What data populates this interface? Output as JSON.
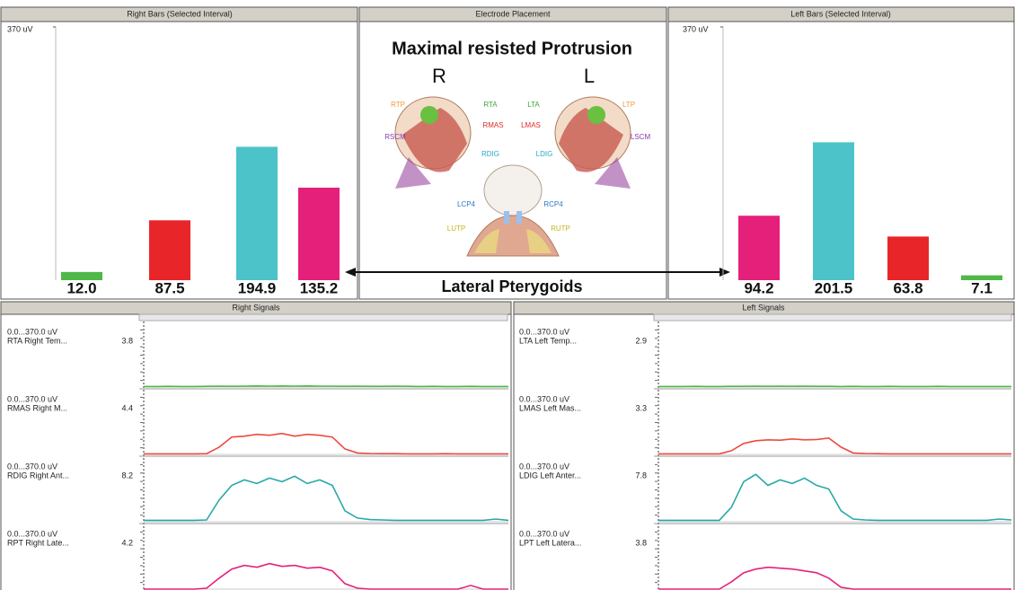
{
  "right_bars": {
    "type": "bar",
    "title": "Right Bars (Selected Interval)",
    "values": [
      12.0,
      87.5,
      194.9,
      135.2
    ],
    "value_labels": [
      "12.0",
      "87.5",
      "194.9",
      "135.2"
    ],
    "colors": [
      "#4fb848",
      "#e8262a",
      "#4cc3c8",
      "#e5207a"
    ],
    "ylim": [
      0,
      370
    ],
    "yticks": [
      {
        "value": 370,
        "label": "370 uV"
      }
    ]
  },
  "electrode_placement": {
    "title": "Electrode Placement",
    "heading": "Maximal resisted Protrusion",
    "side_right": "R",
    "side_left": "L",
    "labels": [
      {
        "text": "RTP",
        "color": "#f09a30"
      },
      {
        "text": "RTA",
        "color": "#3aa83a"
      },
      {
        "text": "RMAS",
        "color": "#e02828"
      },
      {
        "text": "RSCM",
        "color": "#8a3ab0"
      },
      {
        "text": "RDIG",
        "color": "#2aa8c8"
      },
      {
        "text": "LTA",
        "color": "#3aa83a"
      },
      {
        "text": "LTP",
        "color": "#f09a30"
      },
      {
        "text": "LMAS",
        "color": "#e02828"
      },
      {
        "text": "LSCM",
        "color": "#8a3ab0"
      },
      {
        "text": "LDIG",
        "color": "#2aa8c8"
      },
      {
        "text": "LCP4",
        "color": "#2a78d0"
      },
      {
        "text": "RCP4",
        "color": "#2a78d0"
      },
      {
        "text": "LUTP",
        "color": "#c8b420"
      },
      {
        "text": "RUTP",
        "color": "#c8b420"
      }
    ],
    "annotation": "Lateral Pterygoids"
  },
  "left_bars": {
    "type": "bar",
    "title": "Left Bars (Selected Interval)",
    "values": [
      94.2,
      201.5,
      63.8,
      7.1
    ],
    "value_labels": [
      "94.2",
      "201.5",
      "63.8",
      "7.1"
    ],
    "colors": [
      "#e5207a",
      "#4cc3c8",
      "#e8262a",
      "#4fb848"
    ],
    "ylim": [
      0,
      370
    ],
    "yticks": [
      {
        "value": 370,
        "label": "370 uV"
      }
    ]
  },
  "right_signals": {
    "type": "line",
    "title": "Right Signals",
    "ylim": [
      0,
      370
    ],
    "channels": [
      {
        "range": "0.0...370.0 uV",
        "name": "RTA Right Tem...",
        "reading": 3.8,
        "color": "#4fb848",
        "values": [
          3,
          3,
          4,
          3,
          3,
          4,
          5,
          4,
          5,
          6,
          5,
          6,
          5,
          6,
          5,
          5,
          4,
          5,
          4,
          4,
          5,
          4,
          3,
          4,
          3,
          3,
          4,
          3,
          3,
          3
        ]
      },
      {
        "range": "0.0...370.0 uV",
        "name": "RMAS Right M...",
        "reading": 4.4,
        "color": "#ee4a40",
        "values": [
          3,
          3,
          3,
          3,
          3,
          4,
          40,
          95,
          100,
          110,
          105,
          115,
          100,
          110,
          105,
          95,
          30,
          8,
          5,
          4,
          4,
          3,
          3,
          3,
          4,
          3,
          3,
          3,
          3,
          3
        ]
      },
      {
        "range": "0.0...370.0 uV",
        "name": "RDIG Right Ant...",
        "reading": 8.2,
        "color": "#2aa8a8",
        "values": [
          8,
          8,
          8,
          8,
          8,
          10,
          120,
          200,
          230,
          210,
          240,
          220,
          250,
          210,
          230,
          200,
          60,
          20,
          12,
          10,
          8,
          8,
          8,
          8,
          8,
          8,
          8,
          8,
          15,
          8
        ]
      },
      {
        "range": "0.0...370.0 uV",
        "name": "RPT Right Late...",
        "reading": 4.2,
        "color": "#e5207a",
        "values": [
          0,
          0,
          0,
          0,
          0,
          5,
          60,
          110,
          130,
          120,
          140,
          125,
          130,
          115,
          120,
          100,
          30,
          5,
          0,
          0,
          0,
          0,
          0,
          0,
          0,
          0,
          20,
          0,
          0,
          0
        ]
      }
    ]
  },
  "left_signals": {
    "type": "line",
    "title": "Left Signals",
    "ylim": [
      0,
      370
    ],
    "channels": [
      {
        "range": "0.0...370.0 uV",
        "name": "LTA Left Temp...",
        "reading": 2.9,
        "color": "#4fb848",
        "values": [
          3,
          3,
          3,
          4,
          3,
          3,
          4,
          4,
          5,
          4,
          5,
          4,
          5,
          4,
          4,
          3,
          4,
          3,
          3,
          4,
          3,
          3,
          3,
          4,
          3,
          3,
          3,
          3,
          3,
          3
        ]
      },
      {
        "range": "0.0...370.0 uV",
        "name": "LMAS Left Mas...",
        "reading": 3.3,
        "color": "#ee4a40",
        "values": [
          3,
          3,
          3,
          3,
          3,
          3,
          20,
          60,
          75,
          80,
          78,
          85,
          80,
          82,
          90,
          40,
          8,
          5,
          4,
          3,
          3,
          3,
          3,
          3,
          3,
          3,
          3,
          3,
          3,
          3
        ]
      },
      {
        "range": "0.0...370.0 uV",
        "name": "LDIG Left Anter...",
        "reading": 7.8,
        "color": "#2aa8a8",
        "values": [
          8,
          8,
          8,
          8,
          8,
          8,
          80,
          220,
          260,
          200,
          230,
          210,
          240,
          200,
          180,
          60,
          15,
          10,
          8,
          8,
          8,
          8,
          8,
          8,
          8,
          8,
          8,
          8,
          15,
          10
        ]
      },
      {
        "range": "0.0...370.0 uV",
        "name": "LPT Left Latera...",
        "reading": 3.8,
        "color": "#e5207a",
        "values": [
          0,
          0,
          0,
          0,
          0,
          0,
          40,
          90,
          110,
          120,
          115,
          110,
          100,
          90,
          60,
          10,
          0,
          0,
          0,
          0,
          0,
          0,
          0,
          0,
          0,
          0,
          0,
          0,
          0,
          0
        ]
      }
    ]
  }
}
